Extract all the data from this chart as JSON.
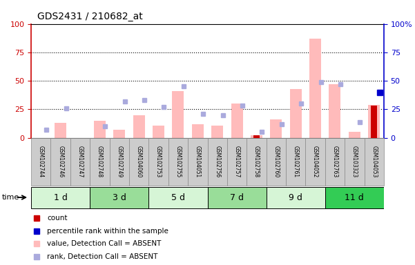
{
  "title": "GDS2431 / 210682_at",
  "samples": [
    "GSM102744",
    "GSM102746",
    "GSM102747",
    "GSM102748",
    "GSM102749",
    "GSM104060",
    "GSM102753",
    "GSM102755",
    "GSM104051",
    "GSM102756",
    "GSM102757",
    "GSM102758",
    "GSM102760",
    "GSM102761",
    "GSM104052",
    "GSM102763",
    "GSM103323",
    "GSM104053"
  ],
  "time_groups": [
    {
      "label": "1 d",
      "indices": [
        0,
        1,
        2
      ],
      "color": "#d6f5d6"
    },
    {
      "label": "3 d",
      "indices": [
        3,
        4,
        5
      ],
      "color": "#99dd99"
    },
    {
      "label": "5 d",
      "indices": [
        6,
        7,
        8
      ],
      "color": "#d6f5d6"
    },
    {
      "label": "7 d",
      "indices": [
        9,
        10,
        11
      ],
      "color": "#99dd99"
    },
    {
      "label": "9 d",
      "indices": [
        12,
        13,
        14
      ],
      "color": "#d6f5d6"
    },
    {
      "label": "11 d",
      "indices": [
        15,
        16,
        17
      ],
      "color": "#33cc55"
    }
  ],
  "bar_values": [
    0,
    13,
    0,
    15,
    7,
    20,
    11,
    41,
    12,
    11,
    30,
    2,
    16,
    43,
    87,
    47,
    5,
    29
  ],
  "rank_squares": [
    7,
    26,
    0,
    10,
    32,
    33,
    27,
    45,
    21,
    20,
    28,
    5,
    12,
    30,
    49,
    47,
    14,
    0
  ],
  "count_values": [
    0,
    0,
    0,
    0,
    0,
    0,
    0,
    0,
    0,
    0,
    0,
    2,
    0,
    0,
    0,
    0,
    0,
    28
  ],
  "count_rank": [
    0,
    0,
    0,
    0,
    0,
    0,
    0,
    0,
    0,
    0,
    0,
    0,
    0,
    0,
    0,
    0,
    0,
    40
  ],
  "ylim": [
    0,
    100
  ],
  "yticks": [
    0,
    25,
    50,
    75,
    100
  ],
  "bar_color_absent": "#ffbbbb",
  "rank_color_absent": "#aaaadd",
  "count_color": "#cc0000",
  "count_rank_color": "#0000cc",
  "left_tick_color": "#cc0000",
  "right_tick_color": "#0000cc",
  "sample_box_color": "#cccccc",
  "sample_box_border": "#888888"
}
